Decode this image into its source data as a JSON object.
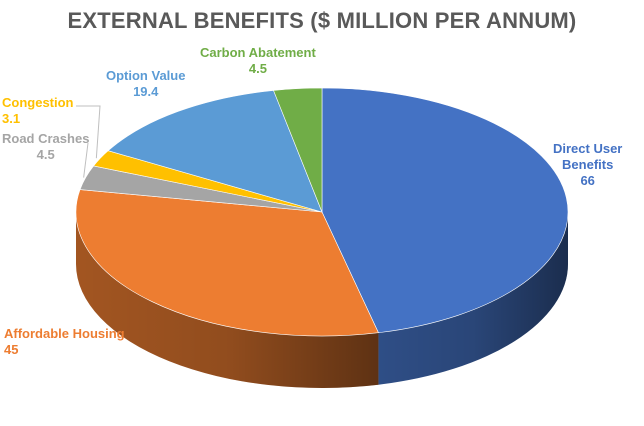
{
  "chart_data": {
    "type": "pie",
    "title": "EXTERNAL BENEFITS ($ MILLION PER ANNUM)",
    "slices": [
      {
        "label": "Direct User Benefits",
        "value": 66,
        "display_value": "66",
        "color": "#4472C4"
      },
      {
        "label": "Affordable Housing",
        "value": 45,
        "display_value": "45",
        "color": "#ED7D31"
      },
      {
        "label": "Road Crashes",
        "value": 4.5,
        "display_value": "4.5",
        "color": "#A5A5A5"
      },
      {
        "label": "Congestion",
        "value": 3.1,
        "display_value": "3.1",
        "color": "#FFC000"
      },
      {
        "label": "Option Value",
        "value": 19.4,
        "display_value": "19.4",
        "color": "#5B9BD5"
      },
      {
        "label": "Carbon Abatement",
        "value": 4.5,
        "display_value": "4.5",
        "color": "#70AD47"
      }
    ],
    "labels": {
      "direct_user_name_line1": "Direct User",
      "direct_user_name_line2": "Benefits"
    }
  }
}
